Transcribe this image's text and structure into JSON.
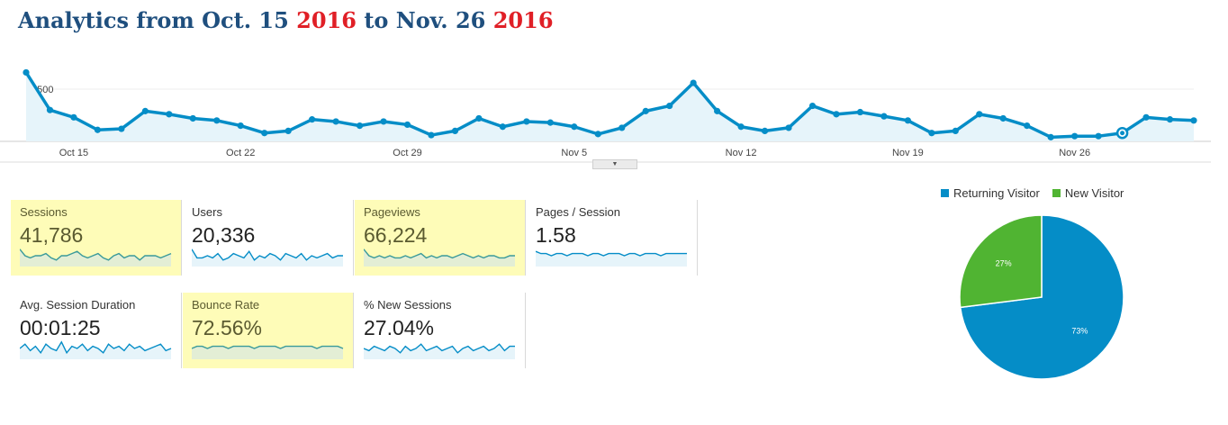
{
  "header": {
    "title_prefix": "Analytics from Oct. 15 ",
    "title_year1": "2016",
    "title_mid": " to Nov. 26 ",
    "title_year2": "2016"
  },
  "main_chart": {
    "type": "line",
    "y_tick_label": "2,500",
    "y_tick_value": 2500,
    "x_labels": [
      "Oct 15",
      "Oct 22",
      "Oct 29",
      "Nov 5",
      "Nov 12",
      "Nov 19",
      "Nov 26"
    ],
    "values": [
      3300,
      1500,
      1150,
      550,
      600,
      1450,
      1300,
      1100,
      1000,
      750,
      400,
      500,
      1050,
      950,
      750,
      950,
      800,
      300,
      500,
      1100,
      700,
      950,
      900,
      700,
      350,
      650,
      1450,
      1700,
      2800,
      1450,
      700,
      500,
      650,
      1700,
      1300,
      1400,
      1200,
      1000,
      400,
      500,
      1300,
      1100,
      750,
      200,
      250,
      250,
      400,
      1150,
      1050,
      1000
    ],
    "line_color": "#058dc7",
    "fill_color": "#e6f4fa",
    "expand_icon": "caret-down-icon"
  },
  "metrics": [
    {
      "label": "Sessions",
      "value": "41,786",
      "highlighted": true,
      "spark": [
        8,
        5,
        4,
        5,
        5,
        6,
        4,
        3,
        5,
        5,
        6,
        7,
        5,
        4,
        5,
        6,
        4,
        3,
        5,
        6,
        4,
        5,
        5,
        3,
        5,
        5,
        5,
        4,
        5,
        6
      ]
    },
    {
      "label": "Users",
      "value": "20,336",
      "highlighted": false,
      "spark": [
        8,
        4,
        4,
        5,
        4,
        6,
        3,
        4,
        6,
        5,
        4,
        7,
        3,
        5,
        4,
        6,
        5,
        3,
        6,
        5,
        4,
        6,
        3,
        5,
        4,
        5,
        6,
        4,
        5,
        5
      ]
    },
    {
      "label": "Pageviews",
      "value": "66,224",
      "highlighted": true,
      "spark": [
        8,
        5,
        4,
        5,
        4,
        5,
        4,
        4,
        5,
        4,
        5,
        6,
        4,
        5,
        4,
        5,
        5,
        4,
        5,
        6,
        5,
        4,
        5,
        4,
        5,
        5,
        4,
        4,
        5,
        5
      ]
    },
    {
      "label": "Pages / Session",
      "value": "1.58",
      "highlighted": false,
      "spark": [
        7,
        6,
        6,
        5,
        6,
        6,
        5,
        6,
        6,
        6,
        5,
        6,
        6,
        5,
        6,
        6,
        6,
        5,
        6,
        6,
        5,
        6,
        6,
        6,
        5,
        6,
        6,
        6,
        6,
        6
      ]
    },
    {
      "label": "Avg. Session Duration",
      "value": "00:01:25",
      "highlighted": false,
      "spark": [
        5,
        7,
        4,
        6,
        3,
        7,
        5,
        4,
        8,
        3,
        6,
        5,
        7,
        4,
        6,
        5,
        3,
        7,
        5,
        6,
        4,
        7,
        5,
        6,
        4,
        5,
        6,
        7,
        4,
        5
      ]
    },
    {
      "label": "Bounce Rate",
      "value": "72.56%",
      "highlighted": true,
      "spark": [
        5,
        6,
        6,
        5,
        6,
        6,
        6,
        5,
        6,
        6,
        6,
        6,
        5,
        6,
        6,
        6,
        6,
        5,
        6,
        6,
        6,
        6,
        6,
        6,
        5,
        6,
        6,
        6,
        6,
        5
      ]
    },
    {
      "label": "% New Sessions",
      "value": "27.04%",
      "highlighted": false,
      "spark": [
        5,
        4,
        6,
        5,
        4,
        6,
        5,
        3,
        6,
        4,
        5,
        7,
        4,
        5,
        6,
        4,
        5,
        6,
        3,
        5,
        6,
        4,
        5,
        6,
        4,
        5,
        7,
        4,
        6,
        6
      ]
    }
  ],
  "pie": {
    "legend": [
      {
        "label": "Returning Visitor",
        "color": "#058dc7"
      },
      {
        "label": "New Visitor",
        "color": "#50b432"
      }
    ],
    "chart_data": {
      "type": "pie",
      "labels": [
        "Returning Visitor",
        "New Visitor"
      ],
      "values": [
        73,
        27
      ],
      "value_labels": [
        "73%",
        "27%"
      ],
      "colors": [
        "#058dc7",
        "#50b432"
      ]
    }
  }
}
